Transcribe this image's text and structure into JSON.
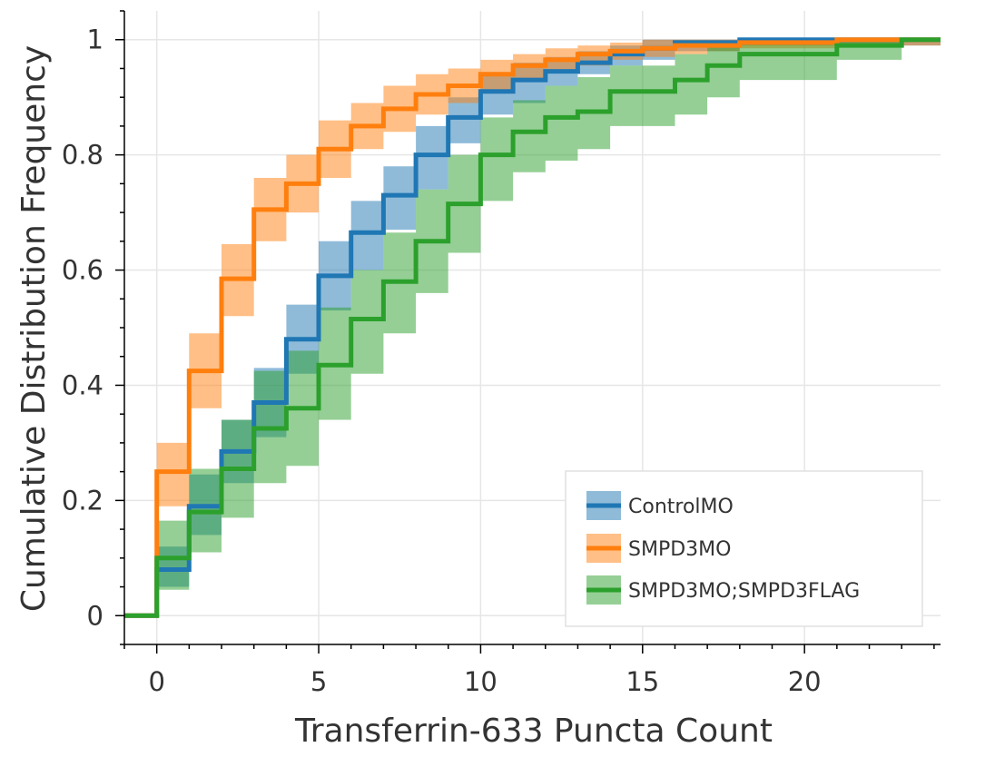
{
  "chart_data": {
    "type": "line",
    "subtype": "step-ecdf-with-confidence-bands",
    "xlabel": "Transferrin-633 Puncta Count",
    "ylabel": "Cumulative Distribution Frequency",
    "xlim": [
      -1,
      24.2
    ],
    "ylim": [
      -0.05,
      1.05
    ],
    "x_ticks": [
      0,
      5,
      10,
      15,
      20
    ],
    "x_tick_labels": [
      "0",
      "5",
      "10",
      "15",
      "20"
    ],
    "y_ticks": [
      0,
      0.2,
      0.4,
      0.6,
      0.8,
      1
    ],
    "y_tick_labels": [
      "0",
      "0.2",
      "0.4",
      "0.6",
      "0.8",
      "1"
    ],
    "grid": true,
    "legend_position": "bottom-right",
    "series": [
      {
        "name": "ControlMO",
        "color": "#1f77b4",
        "x": [
          0,
          1,
          2,
          3,
          4,
          5,
          6,
          7,
          8,
          9,
          10,
          11,
          12,
          13,
          14,
          15,
          16,
          17,
          18,
          19,
          20,
          21,
          22,
          23
        ],
        "y": [
          0.08,
          0.19,
          0.285,
          0.37,
          0.48,
          0.59,
          0.665,
          0.73,
          0.8,
          0.865,
          0.91,
          0.93,
          0.945,
          0.96,
          0.975,
          0.985,
          0.995,
          0.995,
          1.0,
          1.0,
          1.0,
          1.0,
          1.0,
          1.0
        ],
        "band_low": [
          0.05,
          0.14,
          0.23,
          0.31,
          0.42,
          0.53,
          0.6,
          0.67,
          0.74,
          0.82,
          0.87,
          0.89,
          0.92,
          0.94,
          0.955,
          0.965,
          0.98,
          0.98,
          0.99,
          0.99,
          0.99,
          0.99,
          0.99,
          0.99
        ],
        "band_high": [
          0.12,
          0.245,
          0.34,
          0.43,
          0.54,
          0.65,
          0.72,
          0.78,
          0.85,
          0.9,
          0.94,
          0.96,
          0.97,
          0.98,
          0.99,
          1.0,
          1.0,
          1.0,
          1.0,
          1.0,
          1.0,
          1.0,
          1.0,
          1.0
        ]
      },
      {
        "name": "SMPD3MO",
        "color": "#ff7f0e",
        "x": [
          0,
          1,
          2,
          3,
          4,
          5,
          6,
          7,
          8,
          9,
          10,
          11,
          12,
          13,
          14,
          15,
          16,
          17,
          18,
          19,
          20,
          21,
          22,
          23
        ],
        "y": [
          0.25,
          0.425,
          0.585,
          0.705,
          0.75,
          0.81,
          0.85,
          0.88,
          0.905,
          0.92,
          0.94,
          0.955,
          0.965,
          0.975,
          0.98,
          0.985,
          0.99,
          0.99,
          0.995,
          0.995,
          0.995,
          1.0,
          1.0,
          1.0
        ],
        "band_low": [
          0.19,
          0.36,
          0.52,
          0.65,
          0.7,
          0.76,
          0.81,
          0.84,
          0.87,
          0.89,
          0.91,
          0.93,
          0.945,
          0.955,
          0.965,
          0.97,
          0.975,
          0.98,
          0.985,
          0.985,
          0.985,
          0.99,
          0.99,
          0.99
        ],
        "band_high": [
          0.3,
          0.49,
          0.645,
          0.76,
          0.8,
          0.86,
          0.89,
          0.92,
          0.94,
          0.95,
          0.965,
          0.975,
          0.985,
          0.99,
          0.995,
          1.0,
          1.0,
          1.0,
          1.0,
          1.0,
          1.0,
          1.0,
          1.0,
          1.0
        ]
      },
      {
        "name": "SMPD3MO;SMPD3FLAG",
        "color": "#2ca02c",
        "x": [
          0,
          1,
          2,
          3,
          4,
          5,
          6,
          7,
          8,
          9,
          10,
          11,
          12,
          13,
          14,
          15,
          16,
          17,
          18,
          19,
          20,
          21,
          22,
          23
        ],
        "y": [
          0.1,
          0.18,
          0.255,
          0.325,
          0.36,
          0.435,
          0.515,
          0.58,
          0.65,
          0.715,
          0.8,
          0.84,
          0.865,
          0.875,
          0.91,
          0.91,
          0.93,
          0.955,
          0.975,
          0.975,
          0.975,
          0.99,
          0.99,
          1.0
        ],
        "band_low": [
          0.045,
          0.11,
          0.17,
          0.23,
          0.26,
          0.34,
          0.42,
          0.49,
          0.56,
          0.63,
          0.72,
          0.77,
          0.79,
          0.81,
          0.85,
          0.85,
          0.87,
          0.9,
          0.93,
          0.93,
          0.93,
          0.965,
          0.965,
          1.0
        ],
        "band_high": [
          0.165,
          0.255,
          0.34,
          0.425,
          0.46,
          0.535,
          0.6,
          0.665,
          0.74,
          0.8,
          0.865,
          0.895,
          0.92,
          0.935,
          0.955,
          0.955,
          0.975,
          0.99,
          1.0,
          1.0,
          1.0,
          1.0,
          1.0,
          1.0
        ]
      }
    ]
  }
}
